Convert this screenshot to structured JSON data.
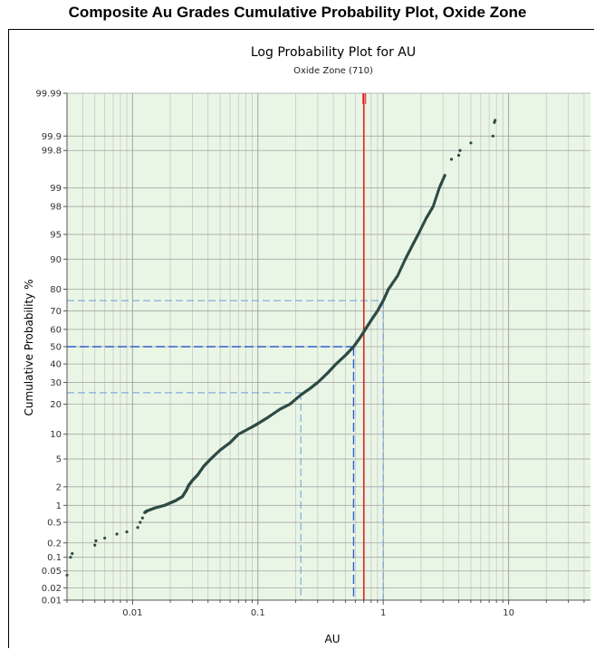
{
  "header": {
    "title": "Composite Au Grades Cumulative Probability Plot, Oxide Zone"
  },
  "chart_data": {
    "type": "scatter",
    "title": "Log Probability Plot for AU",
    "subtitle": "Oxide Zone (710)",
    "xlabel": "AU",
    "ylabel": "Cumulative Probability %",
    "x_scale": "log",
    "y_scale": "probability",
    "xlim": [
      0.003,
      45
    ],
    "ylim": [
      0.01,
      99.99
    ],
    "x_ticks": [
      {
        "value": 0.01,
        "label": "0.01"
      },
      {
        "value": 0.1,
        "label": "0.1"
      },
      {
        "value": 1,
        "label": "1"
      },
      {
        "value": 10,
        "label": "10"
      }
    ],
    "y_ticks": [
      {
        "value": 0.01,
        "label": "0.01"
      },
      {
        "value": 0.02,
        "label": "0.02"
      },
      {
        "value": 0.05,
        "label": "0.05"
      },
      {
        "value": 0.1,
        "label": "0.1"
      },
      {
        "value": 0.2,
        "label": "0.2"
      },
      {
        "value": 0.5,
        "label": "0.5"
      },
      {
        "value": 1,
        "label": "1"
      },
      {
        "value": 2,
        "label": "2"
      },
      {
        "value": 5,
        "label": "5"
      },
      {
        "value": 10,
        "label": "10"
      },
      {
        "value": 20,
        "label": "20"
      },
      {
        "value": 30,
        "label": "30"
      },
      {
        "value": 40,
        "label": "40"
      },
      {
        "value": 50,
        "label": "50"
      },
      {
        "value": 60,
        "label": "60"
      },
      {
        "value": 70,
        "label": "70"
      },
      {
        "value": 80,
        "label": "80"
      },
      {
        "value": 90,
        "label": "90"
      },
      {
        "value": 95,
        "label": "95"
      },
      {
        "value": 98,
        "label": "98"
      },
      {
        "value": 99,
        "label": "99"
      },
      {
        "value": 99.8,
        "label": "99.8"
      },
      {
        "value": 99.9,
        "label": "99.9"
      },
      {
        "value": 99.99,
        "label": "99.99"
      }
    ],
    "grid": true,
    "series": [
      {
        "color": "#2e4a44",
        "points": [
          [
            0.003,
            0.04
          ],
          [
            0.0032,
            0.1
          ],
          [
            0.0033,
            0.12
          ],
          [
            0.005,
            0.18
          ],
          [
            0.0051,
            0.22
          ],
          [
            0.006,
            0.25
          ],
          [
            0.0075,
            0.3
          ],
          [
            0.009,
            0.33
          ],
          [
            0.011,
            0.4
          ],
          [
            0.0115,
            0.5
          ],
          [
            0.012,
            0.6
          ],
          [
            0.0125,
            0.75
          ],
          [
            0.013,
            0.8
          ],
          [
            0.015,
            0.9
          ],
          [
            0.018,
            1.0
          ],
          [
            0.02,
            1.1
          ],
          [
            0.022,
            1.2
          ],
          [
            0.025,
            1.4
          ],
          [
            0.027,
            1.8
          ],
          [
            0.028,
            2.1
          ],
          [
            0.03,
            2.5
          ],
          [
            0.033,
            3
          ],
          [
            0.037,
            4
          ],
          [
            0.042,
            5
          ],
          [
            0.05,
            6.5
          ],
          [
            0.06,
            8
          ],
          [
            0.07,
            10
          ],
          [
            0.09,
            12
          ],
          [
            0.1,
            13
          ],
          [
            0.12,
            15
          ],
          [
            0.15,
            18
          ],
          [
            0.18,
            20
          ],
          [
            0.22,
            24
          ],
          [
            0.26,
            27
          ],
          [
            0.3,
            30
          ],
          [
            0.36,
            35
          ],
          [
            0.42,
            40
          ],
          [
            0.5,
            45
          ],
          [
            0.58,
            50
          ],
          [
            0.65,
            55
          ],
          [
            0.72,
            60
          ],
          [
            0.8,
            65
          ],
          [
            0.9,
            70
          ],
          [
            1.0,
            75
          ],
          [
            1.1,
            80
          ],
          [
            1.3,
            85
          ],
          [
            1.5,
            90
          ],
          [
            1.7,
            93
          ],
          [
            1.9,
            95
          ],
          [
            2.2,
            97
          ],
          [
            2.5,
            98
          ],
          [
            2.8,
            99
          ],
          [
            3.1,
            99.4
          ],
          [
            3.5,
            99.7
          ],
          [
            4.0,
            99.75
          ],
          [
            4.1,
            99.8
          ],
          [
            5.0,
            99.86
          ],
          [
            7.5,
            99.9
          ],
          [
            7.7,
            99.95
          ],
          [
            7.8,
            99.955
          ]
        ]
      }
    ],
    "reference_line": {
      "x": 0.7,
      "color": "#e02020"
    },
    "percentile_guides": [
      {
        "p": 25,
        "x": 0.22,
        "color": "#6b9bd8"
      },
      {
        "p": 50,
        "x": 0.58,
        "color": "#2f5fcf"
      },
      {
        "p": 75,
        "x": 1.0,
        "color": "#6b9bd8"
      }
    ],
    "colors": {
      "grid_major": "#a6a6a6",
      "grid_minor": "#c8c8c8",
      "plot_bg": "#e9f6e6"
    }
  }
}
